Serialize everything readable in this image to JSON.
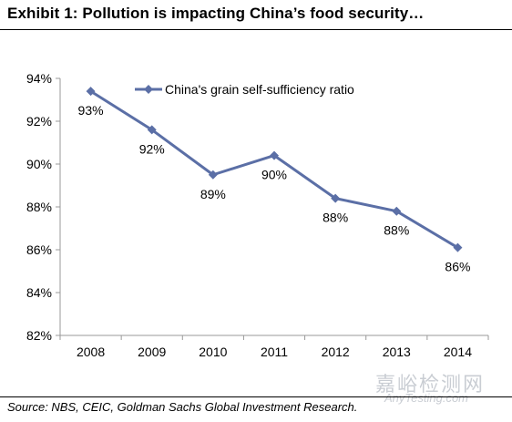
{
  "title": "Exhibit 1: Pollution is impacting China’s food security…",
  "source": "Source: NBS, CEIC, Goldman Sachs Global Investment Research.",
  "watermark": {
    "chinese": "嘉峪检测网",
    "english": "AnyTesting.com"
  },
  "colors": {
    "series": "#5b6fa6",
    "axis": "#999999",
    "text": "#000000"
  },
  "chart_data": {
    "type": "line",
    "title": "",
    "xlabel": "",
    "ylabel": "",
    "categories": [
      "2008",
      "2009",
      "2010",
      "2011",
      "2012",
      "2013",
      "2014"
    ],
    "series": [
      {
        "name": "China's grain self-sufficiency ratio",
        "values": [
          93.4,
          91.6,
          89.5,
          90.4,
          88.4,
          87.8,
          86.1
        ],
        "labels": [
          "93%",
          "92%",
          "89%",
          "90%",
          "88%",
          "88%",
          "86%"
        ],
        "marker": "diamond"
      }
    ],
    "ylim": [
      82,
      94
    ],
    "yticks": [
      82,
      84,
      86,
      88,
      90,
      92,
      94
    ],
    "ytick_labels": [
      "82%",
      "84%",
      "86%",
      "88%",
      "90%",
      "92%",
      "94%"
    ],
    "grid": false,
    "legend": "top-left"
  }
}
